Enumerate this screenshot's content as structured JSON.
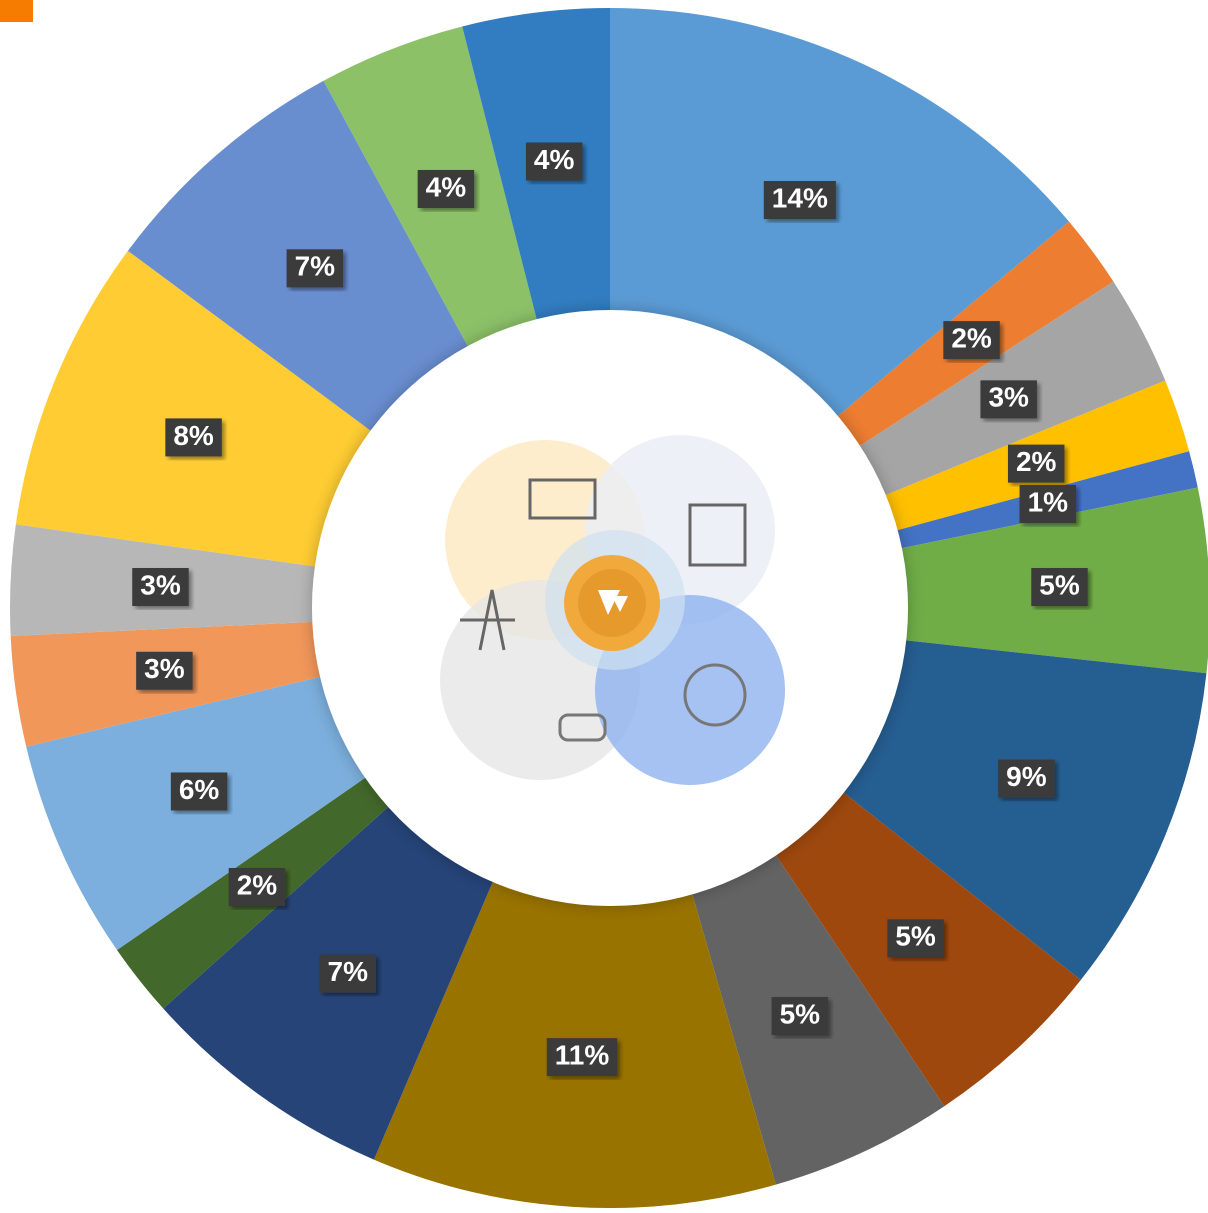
{
  "chart_data": {
    "type": "donut",
    "values": [
      14,
      2,
      3,
      2,
      1,
      5,
      9,
      5,
      5,
      11,
      7,
      2,
      6,
      3,
      3,
      8,
      7,
      4,
      4
    ],
    "value_labels": [
      "14%",
      "2%",
      "3%",
      "2%",
      "1%",
      "5%",
      "9%",
      "5%",
      "5%",
      "11%",
      "7%",
      "2%",
      "6%",
      "3%",
      "3%",
      "8%",
      "7%",
      "4%",
      "4%"
    ],
    "colors": [
      "#5b9bd5",
      "#ed7d31",
      "#a5a5a5",
      "#ffc000",
      "#4472c4",
      "#70ad47",
      "#255e91",
      "#9e480e",
      "#636363",
      "#997300",
      "#264478",
      "#43682b",
      "#7cafdd",
      "#f1975a",
      "#b7b7b7",
      "#ffcd33",
      "#698ed0",
      "#8cc168",
      "#327dc2"
    ]
  }
}
